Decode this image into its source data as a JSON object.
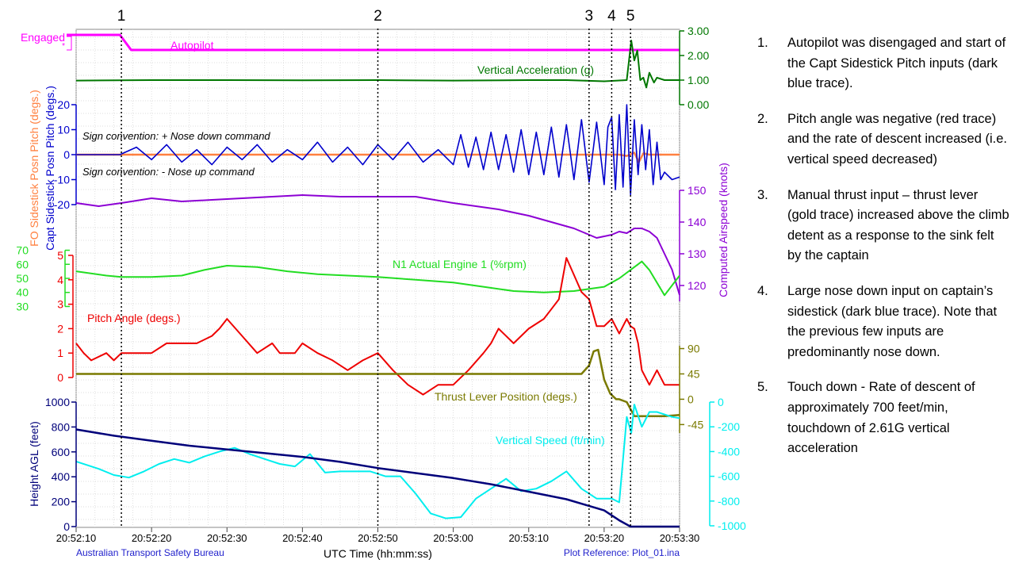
{
  "chart_data": {
    "type": "line",
    "title": "",
    "xlabel": "UTC Time (hh:mm:ss)",
    "x_ticks": [
      "20:52:10",
      "20:52:20",
      "20:52:30",
      "20:52:40",
      "20:52:50",
      "20:53:00",
      "20:53:10",
      "20:53:20",
      "20:53:30"
    ],
    "x_range_s": [
      0,
      80
    ],
    "footer_left": "Australian Transport Safety Bureau",
    "footer_right": "Plot Reference: Plot_01.ina",
    "events": [
      {
        "label": "1",
        "t": "20:52:16"
      },
      {
        "label": "2",
        "t": "20:52:50"
      },
      {
        "label": "3",
        "t": "20:53:18"
      },
      {
        "label": "4",
        "t": "20:53:21"
      },
      {
        "label": "5",
        "t": "20:53:23.5"
      }
    ],
    "panels": {
      "autopilot": {
        "series_name": "Autopilot",
        "color": "#ff00ff",
        "state_labels": [
          "Engaged",
          "*"
        ],
        "t": [
          0,
          5.8,
          7.3,
          80
        ],
        "state": [
          1,
          1,
          0,
          0
        ]
      },
      "vertical_acceleration": {
        "series_name": "Vertical Acceleration (g)",
        "color": "#007700",
        "axis": {
          "ticks": [
            "3.00",
            "2.00",
            "1.00",
            "0.00"
          ],
          "range": [
            0,
            3
          ]
        },
        "t": [
          0,
          10,
          20,
          30,
          40,
          50,
          60,
          65,
          70,
          73,
          73.6,
          74.0,
          74.4,
          74.8,
          75.2,
          75.6,
          76,
          76.6,
          77,
          78,
          80
        ],
        "values": [
          0.98,
          1.0,
          1.0,
          0.99,
          1.0,
          0.98,
          1.0,
          1.0,
          0.95,
          1.0,
          2.61,
          1.8,
          2.2,
          1.0,
          1.1,
          0.7,
          1.3,
          0.9,
          1.1,
          1.0,
          1.0
        ]
      },
      "sidestick": {
        "ylabels": [
          "Capt Sidestick Posn Pitch (degs.)",
          "FO Sidestick Posn Pitch (degs.)"
        ],
        "axis": {
          "ticks": [
            "20",
            "10",
            "0",
            "-10",
            "-20"
          ],
          "range": [
            -20,
            20
          ]
        },
        "annotations": [
          "Sign convention: + Nose down command",
          "Sign convention: - Nose up command"
        ],
        "series": [
          {
            "name": "Capt Sidestick Posn Pitch (degs.)",
            "color": "#0000cc",
            "t": [
              0,
              5.8,
              8,
              10,
              12,
              14,
              16,
              18,
              20,
              22,
              24,
              26,
              28,
              30,
              32,
              34,
              36,
              38,
              40,
              42,
              44,
              46,
              48,
              50,
              51,
              52,
              53,
              54,
              55,
              56,
              57,
              58,
              59,
              60,
              61,
              62,
              63,
              64,
              65,
              66,
              67,
              68,
              69,
              70,
              70.5,
              71,
              71.5,
              72,
              72.5,
              73,
              73.5,
              74,
              74.5,
              75,
              75.5,
              76,
              76.5,
              77,
              77.5,
              78,
              79,
              80
            ],
            "values": [
              0,
              0,
              3,
              -2,
              4,
              -3,
              2,
              -4,
              3,
              -2,
              4,
              -3,
              2,
              -2,
              5,
              -3,
              3,
              -4,
              4,
              -2,
              5,
              -3,
              2,
              -4,
              8,
              -5,
              7,
              -6,
              9,
              -6,
              8,
              -7,
              10,
              -8,
              9,
              -8,
              11,
              -9,
              12,
              -10,
              14,
              -11,
              13,
              -12,
              11,
              15,
              -14,
              16,
              -13,
              20,
              -16,
              14,
              -8,
              12,
              -6,
              10,
              -12,
              5,
              -10,
              -7,
              -10,
              -9
            ]
          },
          {
            "name": "FO Sidestick Posn Pitch (degs.)",
            "color": "#ff8040",
            "t": [
              0,
              72,
              73,
              74,
              74.6,
              75.2,
              76,
              80
            ],
            "values": [
              0,
              0,
              -0.5,
              0.8,
              -3,
              0.5,
              0,
              0
            ]
          }
        ]
      },
      "airspeed": {
        "series_name": "Computed Airspeed (knots)",
        "color": "#8c00d4",
        "axis": {
          "ticks": [
            "150",
            "140",
            "130",
            "120"
          ],
          "range": [
            115,
            150
          ]
        },
        "t": [
          0,
          3,
          6,
          10,
          14,
          18,
          22,
          26,
          30,
          35,
          40,
          45,
          50,
          53,
          56,
          60,
          63,
          66,
          68,
          69,
          70,
          71,
          72,
          73,
          74,
          75,
          76,
          77,
          78,
          79,
          80
        ],
        "values": [
          146,
          145,
          146,
          147.5,
          146.5,
          147,
          147.5,
          148,
          148.5,
          148,
          148,
          148,
          146,
          145,
          144,
          142,
          140,
          138,
          136,
          135,
          135.5,
          136,
          137,
          136.5,
          138,
          138,
          137,
          135,
          130,
          125,
          117
        ]
      },
      "n1": {
        "series_name": "N1 Actual Engine 1 (%rpm)",
        "color": "#22dd22",
        "axis": {
          "ticks": [
            "70",
            "60",
            "50",
            "40",
            "30"
          ],
          "range": [
            28,
            72
          ]
        },
        "t": [
          0,
          4,
          6,
          10,
          14,
          17,
          20,
          24,
          28,
          32,
          36,
          40,
          45,
          50,
          54,
          58,
          62,
          66,
          70,
          72,
          74,
          75,
          76,
          78,
          80
        ],
        "values": [
          55,
          52,
          51,
          51,
          52,
          56,
          59,
          58,
          55,
          53,
          52,
          51,
          49,
          47,
          44,
          41,
          40,
          41,
          44,
          50,
          58,
          62,
          56,
          38,
          52
        ]
      },
      "pitch_angle": {
        "series_name": "Pitch Angle (degs.)",
        "color": "#ee0000",
        "axis": {
          "ticks": [
            "5",
            "4",
            "3",
            "2",
            "1",
            "0"
          ],
          "range": [
            0,
            5
          ]
        },
        "t": [
          0,
          1,
          2,
          4,
          5,
          6,
          10,
          12,
          14,
          16,
          18,
          19,
          20,
          22,
          24,
          26,
          27,
          28,
          29,
          30,
          32,
          34,
          36,
          38,
          40,
          42,
          44,
          46,
          48,
          50,
          52,
          54,
          55,
          56,
          58,
          60,
          62,
          63,
          64,
          65,
          66,
          67,
          68,
          69,
          70,
          71,
          72,
          73,
          73.5,
          74,
          74.5,
          75,
          76,
          77,
          78,
          79,
          80
        ],
        "values": [
          1.4,
          1.0,
          0.7,
          1.0,
          0.7,
          1.0,
          1.0,
          1.4,
          1.4,
          1.4,
          1.7,
          2.0,
          2.4,
          1.7,
          1.0,
          1.4,
          1.0,
          1.0,
          1.0,
          1.4,
          1.0,
          0.7,
          0.3,
          0.7,
          1.0,
          0.3,
          -0.3,
          -0.7,
          -0.3,
          -0.3,
          0.3,
          1.0,
          1.4,
          2.0,
          1.4,
          2.0,
          2.4,
          2.8,
          3.2,
          4.9,
          4.2,
          3.5,
          3.2,
          2.1,
          2.1,
          2.4,
          1.8,
          2.4,
          2.1,
          2.0,
          1.4,
          0.3,
          -0.3,
          0.3,
          -0.3,
          -0.3,
          -0.3
        ]
      },
      "thrust_lever": {
        "series_name": "Thrust Lever Position (degs.)",
        "color": "#7a7a00",
        "axis": {
          "ticks": [
            "90",
            "45",
            "0",
            "-45"
          ],
          "range": [
            -60,
            95
          ]
        },
        "t": [
          0,
          67,
          68,
          68.6,
          69.2,
          70,
          70.8,
          71.6,
          72,
          73,
          74,
          76,
          78,
          80
        ],
        "values": [
          45,
          45,
          60,
          85,
          88,
          35,
          10,
          0,
          0,
          -5,
          -30,
          -30,
          -30,
          -28
        ]
      },
      "height_agl": {
        "series_name": "Height AGL (feet)",
        "color": "#00007a",
        "axis": {
          "ticks": [
            "1000",
            "800",
            "600",
            "400",
            "200",
            "0"
          ],
          "range": [
            0,
            1000
          ]
        },
        "t": [
          0,
          5,
          10,
          15,
          20,
          25,
          30,
          35,
          40,
          45,
          50,
          55,
          60,
          65,
          70,
          72,
          73.5,
          80
        ],
        "values": [
          780,
          730,
          690,
          650,
          620,
          590,
          560,
          520,
          470,
          430,
          390,
          340,
          280,
          220,
          130,
          50,
          0,
          0
        ]
      },
      "vertical_speed": {
        "series_name": "Vertical Speed (ft/min)",
        "color": "#00eeee",
        "axis": {
          "ticks": [
            "0",
            "-200",
            "-400",
            "-600",
            "-800",
            "-1000"
          ],
          "range": [
            -1000,
            0
          ]
        },
        "t": [
          0,
          3,
          5,
          7,
          9,
          11,
          13,
          15,
          17,
          19,
          21,
          23,
          25,
          27,
          29,
          31,
          33,
          35,
          37,
          39,
          41,
          43,
          45,
          47,
          49,
          51,
          53,
          55,
          57,
          59,
          61,
          63,
          65,
          67,
          69,
          71,
          72,
          73,
          73.6,
          74,
          75,
          76,
          77,
          78,
          79,
          80
        ],
        "values": [
          -480,
          -540,
          -590,
          -610,
          -560,
          -500,
          -460,
          -490,
          -440,
          -400,
          -370,
          -420,
          -460,
          -500,
          -520,
          -420,
          -570,
          -560,
          -560,
          -560,
          -600,
          -600,
          -740,
          -900,
          -940,
          -930,
          -780,
          -700,
          -620,
          -720,
          -700,
          -640,
          -560,
          -700,
          -780,
          -780,
          -810,
          -120,
          -250,
          -20,
          -200,
          -80,
          -80,
          -100,
          -120,
          -130
        ]
      }
    }
  },
  "notes": [
    {
      "num": "1.",
      "text": "Autopilot was disengaged and start of the Capt Sidestick Pitch inputs (dark blue trace)."
    },
    {
      "num": "2.",
      "text": "Pitch angle was negative (red trace) and the rate of descent increased (i.e. vertical speed decreased)"
    },
    {
      "num": "3.",
      "text": "Manual thrust input – thrust lever (gold trace) increased above the climb detent as a response to the sink felt by the captain"
    },
    {
      "num": "4.",
      "text": "Large nose down input on captain’s sidestick (dark blue trace). Note that the previous few inputs are predominantly nose down."
    },
    {
      "num": "5.",
      "text": "Touch down - Rate of descent of approximately 700 feet/min, touchdown of 2.61G vertical acceleration"
    }
  ]
}
